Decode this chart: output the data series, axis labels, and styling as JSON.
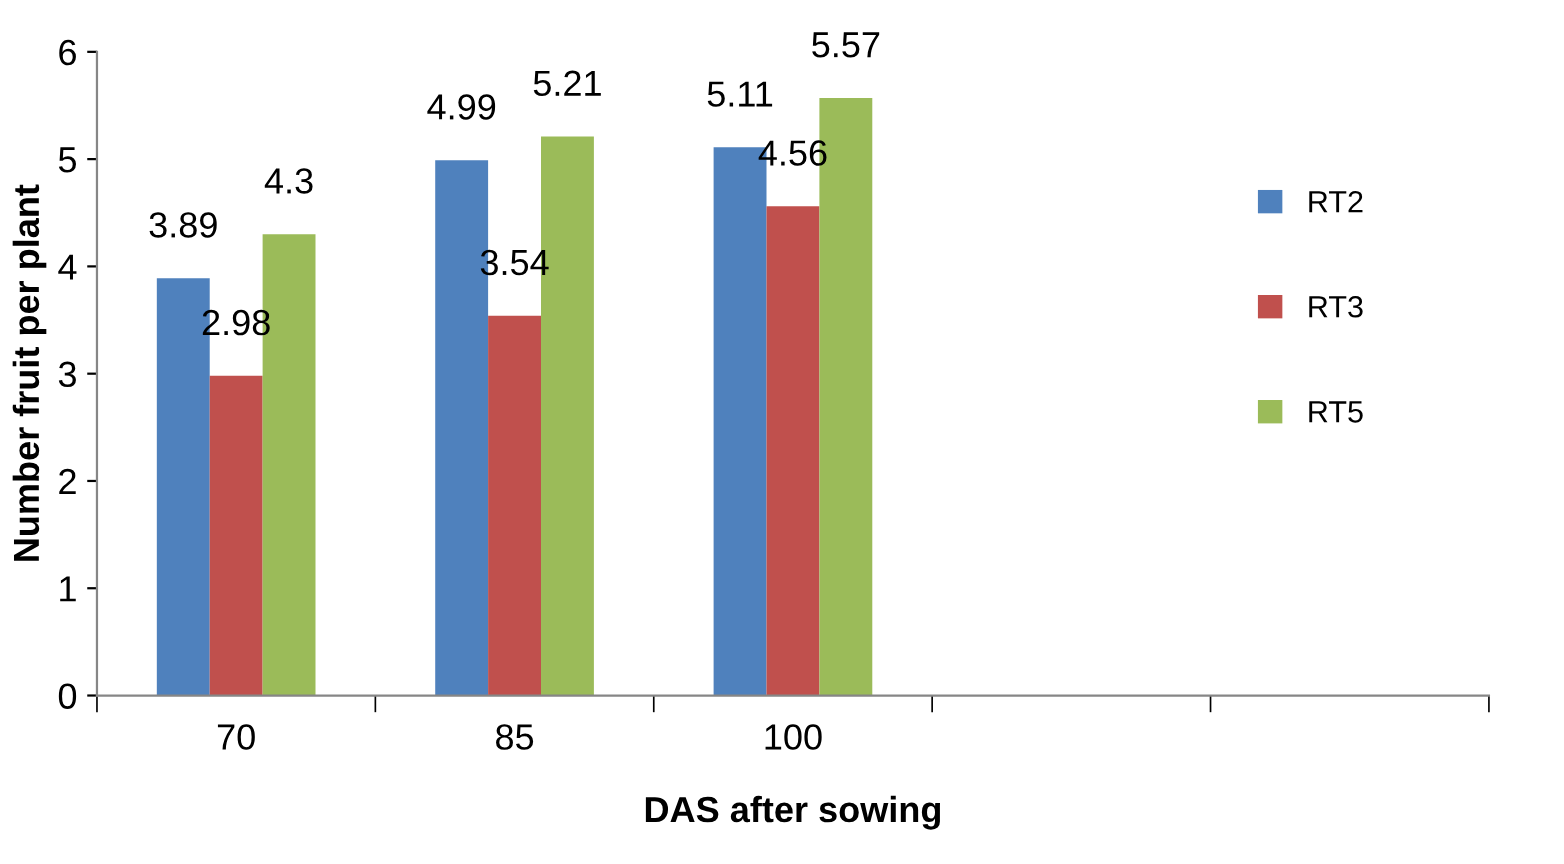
{
  "chart_data": {
    "type": "bar",
    "xlabel": "DAS after sowing",
    "ylabel": "Number fruit per plant",
    "categories": [
      "70",
      "85",
      "100",
      null,
      null
    ],
    "series": [
      {
        "name": "RT2",
        "color": "#4f81bd",
        "values": [
          3.89,
          4.99,
          5.11,
          null,
          null
        ]
      },
      {
        "name": "RT3",
        "color": "#c0504d",
        "values": [
          2.98,
          3.54,
          4.56,
          null,
          null
        ]
      },
      {
        "name": "RT5",
        "color": "#9bbb59",
        "values": [
          4.3,
          5.21,
          5.57,
          null,
          null
        ]
      }
    ],
    "ylim": [
      0,
      6
    ],
    "yticks": [
      0,
      1,
      2,
      3,
      4,
      5,
      6
    ],
    "data_labels": true,
    "legend": "right",
    "grid": false
  }
}
